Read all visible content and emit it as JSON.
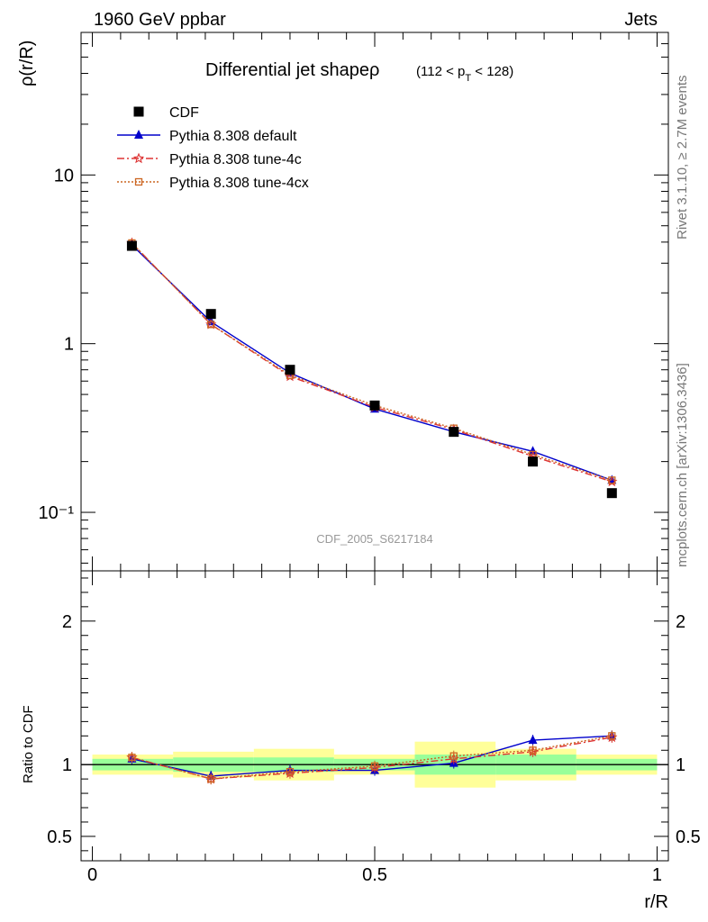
{
  "header": {
    "left": "1960 GeV ppbar",
    "right": "Jets"
  },
  "side_text": {
    "top": "Rivet 3.1.10, ≥ 2.7M events",
    "bottom": "mcplots.cern.ch [arXiv:1306.3436]"
  },
  "watermark": "CDF_2005_S6217184",
  "chart_data": {
    "type": "line",
    "title": "Differential jet shapeρ",
    "subtitle": "(112 < p_T < 128)",
    "ylabel": "ρ(r/R)",
    "xlabel": "r/R",
    "ratio_ylabel": "Ratio to CDF",
    "x": [
      0.07,
      0.21,
      0.35,
      0.5,
      0.64,
      0.78,
      0.92
    ],
    "band_edges": [
      0.0,
      0.143,
      0.286,
      0.428,
      0.571,
      0.714,
      0.857,
      1.0
    ],
    "data": {
      "name": "CDF",
      "y": [
        3.8,
        1.5,
        0.7,
        0.43,
        0.3,
        0.2,
        0.13
      ]
    },
    "series": [
      {
        "name": "Pythia 8.308 default",
        "color": "#0000cc",
        "marker": "triangle",
        "y": [
          3.85,
          1.35,
          0.67,
          0.41,
          0.3,
          0.23,
          0.155
        ],
        "ratio": [
          1.04,
          0.92,
          0.96,
          0.96,
          1.01,
          1.17,
          1.2
        ]
      },
      {
        "name": "Pythia 8.308 tune-4c",
        "color": "#dd3333",
        "marker": "star",
        "y": [
          3.95,
          1.3,
          0.64,
          0.42,
          0.31,
          0.215,
          0.152
        ],
        "ratio": [
          1.05,
          0.9,
          0.94,
          0.98,
          1.04,
          1.09,
          1.19
        ]
      },
      {
        "name": "Pythia 8.308 tune-4cx",
        "color": "#cc6622",
        "marker": "open-square",
        "y": [
          3.95,
          1.3,
          0.65,
          0.43,
          0.315,
          0.22,
          0.155
        ],
        "ratio": [
          1.05,
          0.9,
          0.95,
          0.99,
          1.06,
          1.1,
          1.2
        ]
      }
    ],
    "bands": {
      "green_half": [
        0.04,
        0.05,
        0.05,
        0.04,
        0.07,
        0.07,
        0.04
      ],
      "yellow_half": [
        0.07,
        0.09,
        0.11,
        0.07,
        0.16,
        0.11,
        0.07
      ]
    },
    "main_ylim": [
      0.045,
      70
    ],
    "main_ytick_labels": [
      "10⁻¹",
      "1",
      "10"
    ],
    "main_ytick_values": [
      0.1,
      1,
      10
    ],
    "ratio_ylim": [
      0.33,
      2.35
    ],
    "ratio_ytick_labels": [
      "0.5",
      "1",
      "2"
    ],
    "ratio_ytick_values": [
      0.5,
      1,
      2
    ],
    "xlim": [
      -0.02,
      1.02
    ],
    "xtick_labels": [
      "0",
      "0.5",
      "1"
    ],
    "xtick_values": [
      0,
      0.5,
      1
    ],
    "log_y": true,
    "legend_position": "top-left"
  }
}
